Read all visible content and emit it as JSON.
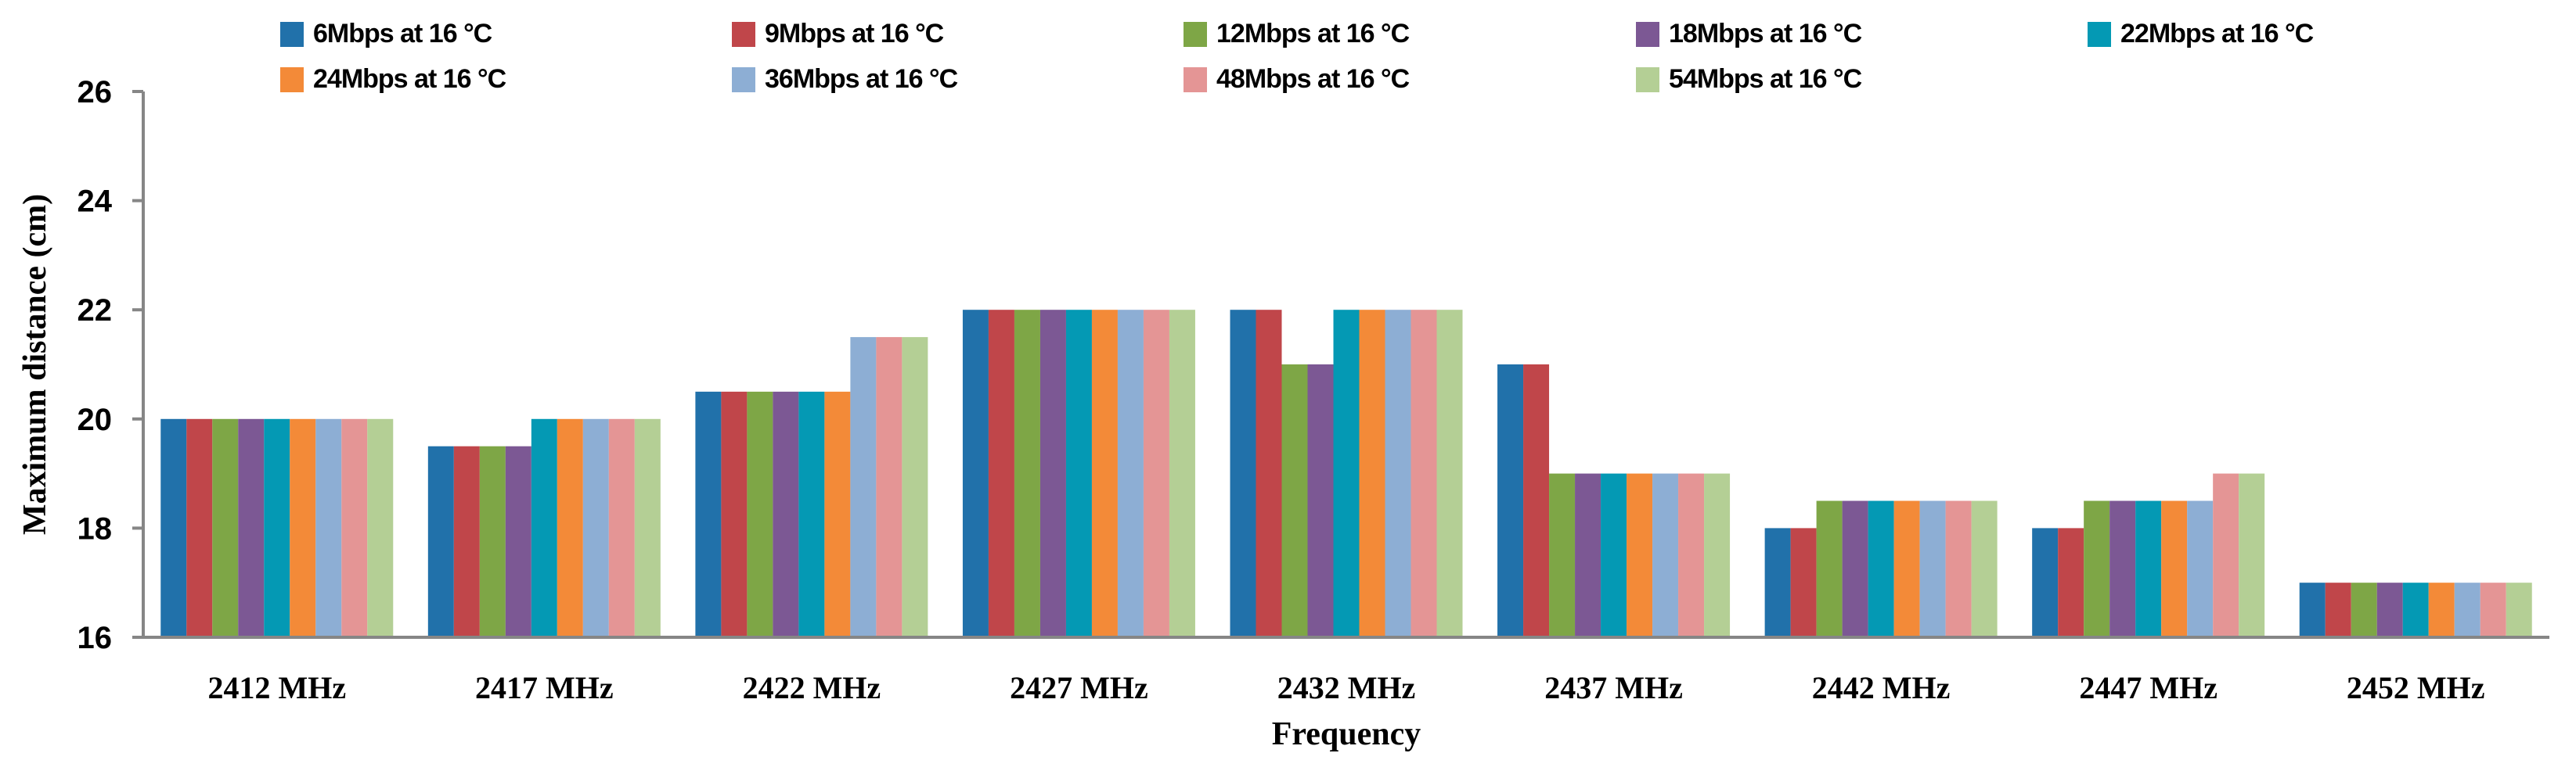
{
  "chart_data": {
    "type": "bar",
    "title": "",
    "xlabel": "Frequency",
    "ylabel": "Maximum distance (cm)",
    "ylim": [
      16,
      26
    ],
    "yticks": [
      "16",
      "18",
      "20",
      "22",
      "24",
      "26"
    ],
    "grid": false,
    "legend_position": "top",
    "categories": [
      "2412 MHz",
      "2417 MHz",
      "2422 MHz",
      "2427 MHz",
      "2432 MHz",
      "2437 MHz",
      "2442 MHz",
      "2447 MHz",
      "2452 MHz"
    ],
    "series": [
      {
        "name": "6Mbps at 16 °C",
        "color": "#2171AA",
        "values": [
          20,
          19.5,
          20.5,
          22,
          22,
          21,
          18,
          18,
          17
        ]
      },
      {
        "name": "9Mbps at 16 °C",
        "color": "#C0464A",
        "values": [
          20,
          19.5,
          20.5,
          22,
          22,
          21,
          18,
          18,
          17
        ]
      },
      {
        "name": "12Mbps at 16 °C",
        "color": "#7EA646",
        "values": [
          20,
          19.5,
          20.5,
          22,
          21,
          19,
          18.5,
          18.5,
          17
        ]
      },
      {
        "name": "18Mbps at 16 °C",
        "color": "#7C5894",
        "values": [
          20,
          19.5,
          20.5,
          22,
          21,
          19,
          18.5,
          18.5,
          17
        ]
      },
      {
        "name": "22Mbps at 16 °C",
        "color": "#0499B4",
        "values": [
          20,
          20,
          20.5,
          22,
          22,
          19,
          18.5,
          18.5,
          17
        ]
      },
      {
        "name": "24Mbps at 16 °C",
        "color": "#F38A38",
        "values": [
          20,
          20,
          20.5,
          22,
          22,
          19,
          18.5,
          18.5,
          17
        ]
      },
      {
        "name": "36Mbps at 16 °C",
        "color": "#8DAED4",
        "values": [
          20,
          20,
          21.5,
          22,
          22,
          19,
          18.5,
          18.5,
          17
        ]
      },
      {
        "name": "48Mbps at 16 °C",
        "color": "#E49595",
        "values": [
          20,
          20,
          21.5,
          22,
          22,
          19,
          18.5,
          19,
          17
        ]
      },
      {
        "name": "54Mbps at 16 °C",
        "color": "#B4CF95",
        "values": [
          20,
          20,
          21.5,
          22,
          22,
          19,
          18.5,
          19,
          17
        ]
      }
    ]
  }
}
